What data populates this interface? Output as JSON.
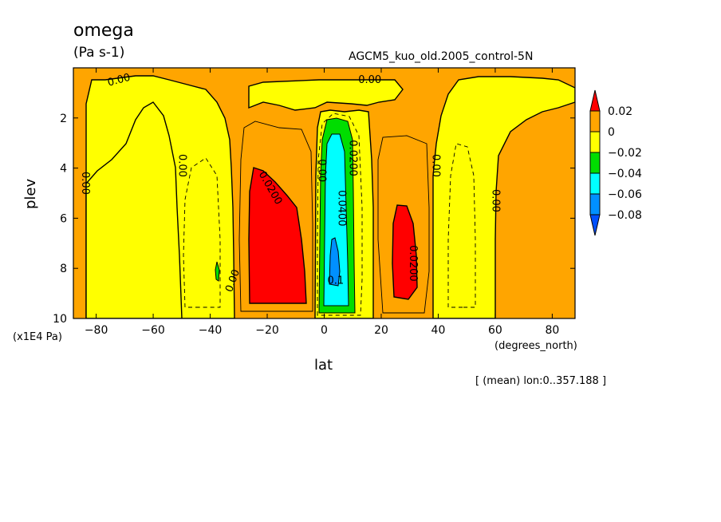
{
  "chart_data": {
    "type": "heatmap",
    "title": "omega",
    "units": "(Pa s-1)",
    "subtitle": "AGCM5_kuo_old.2005_control-5N",
    "xlabel": "lat",
    "xunits": "(degrees_north)",
    "ylabel": "plev",
    "yunits": "(x1E4 Pa)",
    "note": "[ (mean) lon:0..357.188 ]",
    "xlim": [
      -88,
      88
    ],
    "ylim": [
      10,
      0
    ],
    "x_ticks": [
      -80,
      -60,
      -40,
      -20,
      0,
      20,
      40,
      60,
      80
    ],
    "y_ticks": [
      2,
      4,
      6,
      8,
      10
    ],
    "colorbar": {
      "levels": [
        "0.02",
        "0",
        "−0.02",
        "−0.04",
        "−0.06",
        "−0.08"
      ],
      "colors": [
        "#ff0000",
        "#ffa500",
        "#ffff00",
        "#00dd00",
        "#00ffff",
        "#0090ff",
        "#0050ff"
      ]
    },
    "contour_labels": [
      {
        "text": "0.00",
        "x": -72,
        "y": 0.5,
        "angle": -15
      },
      {
        "text": "0.00",
        "x": 16,
        "y": 0.5,
        "angle": 0
      },
      {
        "text": "0.00",
        "x": -84,
        "y": 4.6,
        "angle": 90
      },
      {
        "text": "0.00",
        "x": -50,
        "y": 3.9,
        "angle": 90
      },
      {
        "text": "0.00",
        "x": -1,
        "y": 4.1,
        "angle": 90
      },
      {
        "text": "0.00",
        "x": 39,
        "y": 3.9,
        "angle": 90
      },
      {
        "text": "0.00",
        "x": 60,
        "y": 5.3,
        "angle": 90
      },
      {
        "text": "0.00",
        "x": -32,
        "y": 8.5,
        "angle": -70
      },
      {
        "text": "0.0200",
        "x": -19,
        "y": 4.8,
        "angle": 60
      },
      {
        "text": "0.0200",
        "x": 10,
        "y": 3.6,
        "angle": 90
      },
      {
        "text": "0.0400",
        "x": 6,
        "y": 5.6,
        "angle": 90
      },
      {
        "text": "0.0200",
        "x": 31,
        "y": 7.8,
        "angle": 90
      },
      {
        "text": "0.1",
        "x": 4,
        "y": 8.5,
        "angle": 0
      }
    ]
  }
}
